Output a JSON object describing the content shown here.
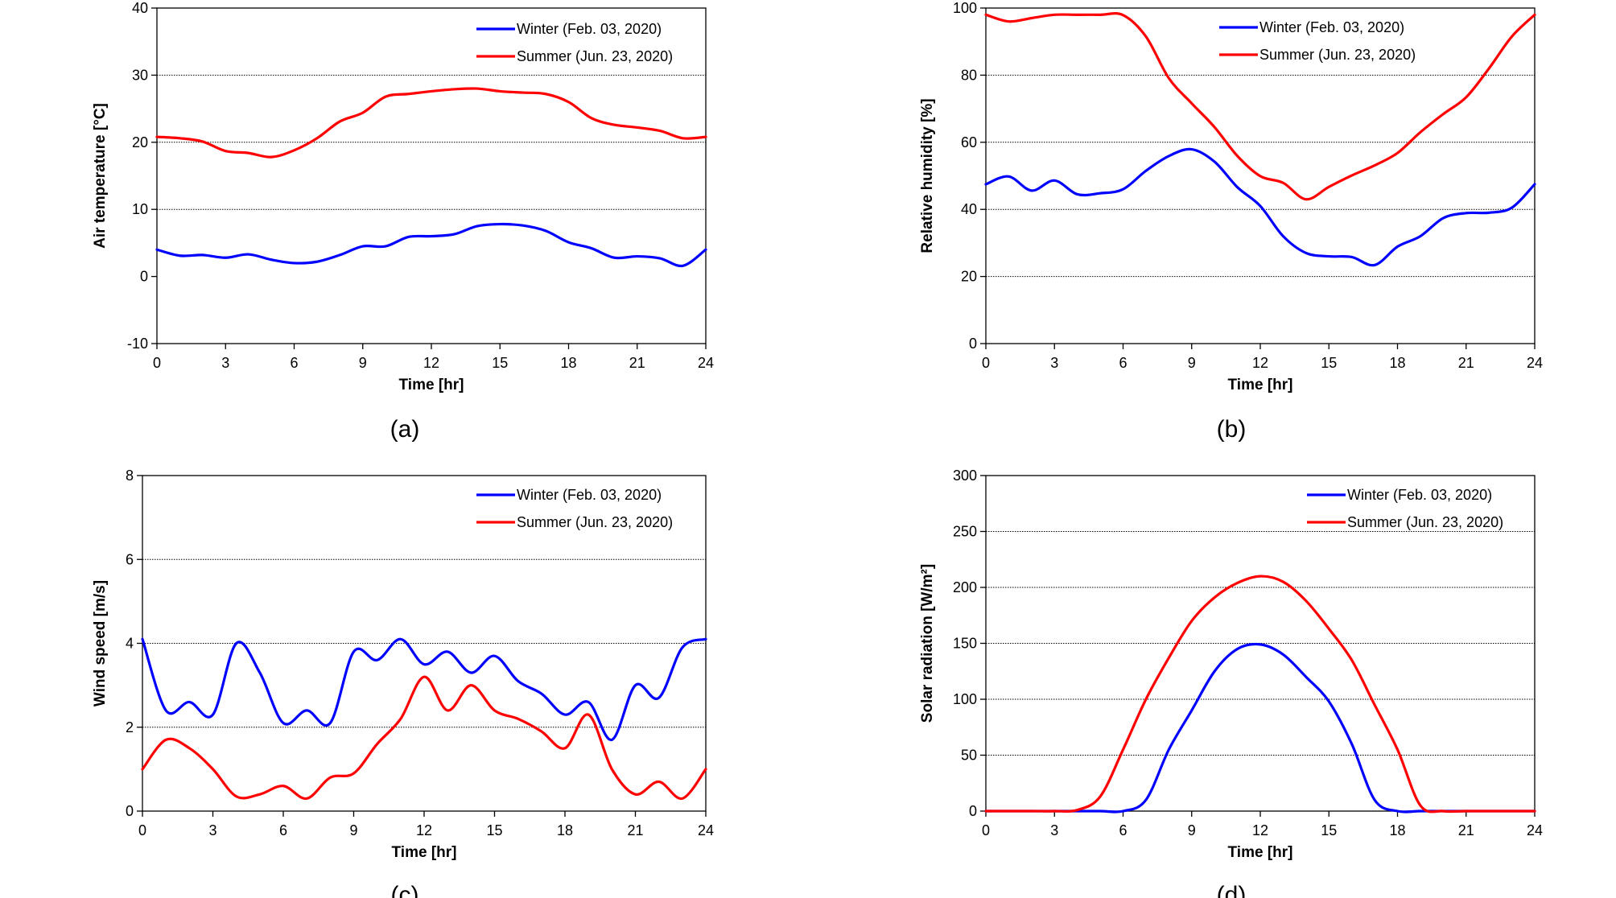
{
  "legend": {
    "winter": "Winter (Feb. 03, 2020)",
    "summer": "Summer (Jun. 23, 2020)"
  },
  "colors": {
    "winter": "#0000ff",
    "summer": "#ff0000",
    "grid": "#000000"
  },
  "chart_data": [
    {
      "type": "line",
      "panel_label": "(a)",
      "xlabel": "Time [hr]",
      "ylabel": "Air temperature [°C]",
      "xlim": [
        0,
        24
      ],
      "ylim": [
        -10,
        40
      ],
      "xticks": [
        0,
        3,
        6,
        9,
        12,
        15,
        18,
        21,
        24
      ],
      "yticks": [
        -10,
        0,
        10,
        20,
        30,
        40
      ],
      "gridlines_y": [
        10,
        20,
        30
      ],
      "legend_position": "top-right",
      "series": [
        {
          "name": "Winter (Feb. 03, 2020)",
          "color": "#0000ff",
          "x": [
            0,
            1,
            2,
            3,
            4,
            5,
            6,
            7,
            8,
            9,
            10,
            11,
            12,
            13,
            14,
            15,
            16,
            17,
            18,
            19,
            20,
            21,
            22,
            23,
            24
          ],
          "y": [
            4.0,
            3.1,
            3.2,
            2.8,
            3.3,
            2.5,
            2.0,
            2.2,
            3.2,
            4.5,
            4.5,
            5.9,
            6.0,
            6.3,
            7.5,
            7.8,
            7.6,
            6.8,
            5.1,
            4.2,
            2.8,
            3.0,
            2.7,
            1.6,
            4.0
          ]
        },
        {
          "name": "Summer (Jun. 23, 2020)",
          "color": "#ff0000",
          "x": [
            0,
            1,
            2,
            3,
            4,
            5,
            6,
            7,
            8,
            9,
            10,
            11,
            12,
            13,
            14,
            15,
            16,
            17,
            18,
            19,
            20,
            21,
            22,
            23,
            24
          ],
          "y": [
            20.8,
            20.6,
            20.1,
            18.7,
            18.4,
            17.8,
            18.8,
            20.6,
            23.1,
            24.4,
            26.8,
            27.2,
            27.6,
            27.9,
            28.0,
            27.6,
            27.4,
            27.2,
            26.0,
            23.6,
            22.6,
            22.2,
            21.7,
            20.6,
            20.8
          ]
        }
      ]
    },
    {
      "type": "line",
      "panel_label": "(b)",
      "xlabel": "Time [hr]",
      "ylabel": "Relative humidity [%]",
      "xlim": [
        0,
        24
      ],
      "ylim": [
        0,
        100
      ],
      "xticks": [
        0,
        3,
        6,
        9,
        12,
        15,
        18,
        21,
        24
      ],
      "yticks": [
        0,
        20,
        40,
        60,
        80,
        100
      ],
      "gridlines_y": [
        20,
        40,
        60,
        80
      ],
      "legend_position": "top-right",
      "series": [
        {
          "name": "Winter (Feb. 03, 2020)",
          "color": "#0000ff",
          "x": [
            0,
            1,
            2,
            3,
            4,
            5,
            6,
            7,
            8,
            9,
            10,
            11,
            12,
            13,
            14,
            15,
            16,
            17,
            18,
            19,
            20,
            21,
            22,
            23,
            24
          ],
          "y": [
            47.5,
            49.8,
            45.6,
            48.6,
            44.5,
            44.8,
            46.0,
            51.5,
            55.9,
            57.9,
            54.2,
            46.6,
            41.0,
            32.0,
            27.0,
            26.0,
            25.8,
            23.4,
            28.9,
            32.0,
            37.4,
            38.9,
            39.0,
            40.5,
            47.5
          ]
        },
        {
          "name": "Summer (Jun. 23, 2020)",
          "color": "#ff0000",
          "x": [
            0,
            1,
            2,
            3,
            4,
            5,
            6,
            7,
            8,
            9,
            10,
            11,
            12,
            13,
            14,
            15,
            16,
            17,
            18,
            19,
            20,
            21,
            22,
            23,
            24
          ],
          "y": [
            98.0,
            96.0,
            97.0,
            98.0,
            98.0,
            98.0,
            97.9,
            91.5,
            79.1,
            71.6,
            64.5,
            55.9,
            49.9,
            47.9,
            43.0,
            46.7,
            50.1,
            53.1,
            56.8,
            63.0,
            68.4,
            73.4,
            82.0,
            91.5,
            98.0
          ]
        }
      ]
    },
    {
      "type": "line",
      "panel_label": "(c)",
      "xlabel": "Time [hr]",
      "ylabel": "Wind speed [m/s]",
      "xlim": [
        0,
        24
      ],
      "ylim": [
        0,
        8
      ],
      "xticks": [
        0,
        3,
        6,
        9,
        12,
        15,
        18,
        21,
        24
      ],
      "yticks": [
        0,
        2,
        4,
        6,
        8
      ],
      "gridlines_y": [
        2,
        4,
        6
      ],
      "legend_position": "top-right",
      "series": [
        {
          "name": "Winter (Feb. 03, 2020)",
          "color": "#0000ff",
          "x": [
            0,
            1,
            2,
            3,
            4,
            5,
            6,
            7,
            8,
            9,
            10,
            11,
            12,
            13,
            14,
            15,
            16,
            17,
            18,
            19,
            20,
            21,
            22,
            23,
            24
          ],
          "y": [
            4.1,
            2.4,
            2.6,
            2.3,
            4.0,
            3.3,
            2.1,
            2.4,
            2.1,
            3.8,
            3.6,
            4.1,
            3.5,
            3.8,
            3.3,
            3.7,
            3.1,
            2.8,
            2.3,
            2.6,
            1.7,
            3.0,
            2.7,
            3.9,
            4.1
          ]
        },
        {
          "name": "Summer (Jun. 23, 2020)",
          "color": "#ff0000",
          "x": [
            0,
            1,
            2,
            3,
            4,
            5,
            6,
            7,
            8,
            9,
            10,
            11,
            12,
            13,
            14,
            15,
            16,
            17,
            18,
            19,
            20,
            21,
            22,
            23,
            24
          ],
          "y": [
            1.0,
            1.7,
            1.5,
            1.0,
            0.35,
            0.4,
            0.6,
            0.3,
            0.8,
            0.9,
            1.6,
            2.2,
            3.2,
            2.4,
            3.0,
            2.4,
            2.2,
            1.9,
            1.5,
            2.3,
            1.0,
            0.4,
            0.7,
            0.3,
            1.0
          ]
        }
      ]
    },
    {
      "type": "line",
      "panel_label": "(d)",
      "xlabel": "Time [hr]",
      "ylabel": "Solar radiation [W/m²]",
      "xlim": [
        0,
        24
      ],
      "ylim": [
        0,
        300
      ],
      "xticks": [
        0,
        3,
        6,
        9,
        12,
        15,
        18,
        21,
        24
      ],
      "yticks": [
        0,
        50,
        100,
        150,
        200,
        250,
        300
      ],
      "gridlines_y": [
        50,
        100,
        150,
        200,
        250
      ],
      "legend_position": "top-right",
      "series": [
        {
          "name": "Winter (Feb. 03, 2020)",
          "color": "#0000ff",
          "x": [
            0,
            1,
            2,
            3,
            4,
            5,
            6,
            7,
            8,
            9,
            10,
            11,
            12,
            13,
            14,
            15,
            16,
            17,
            18,
            19,
            20,
            21,
            22,
            23,
            24
          ],
          "y": [
            0,
            0,
            0,
            0,
            0,
            0,
            0,
            10,
            55,
            90,
            125,
            145,
            149,
            140,
            120,
            98,
            60,
            10,
            0,
            0,
            0,
            0,
            0,
            0,
            0
          ]
        },
        {
          "name": "Summer (Jun. 23, 2020)",
          "color": "#ff0000",
          "x": [
            0,
            1,
            2,
            3,
            4,
            5,
            6,
            7,
            8,
            9,
            10,
            11,
            12,
            13,
            14,
            15,
            16,
            17,
            18,
            19,
            20,
            21,
            22,
            23,
            24
          ],
          "y": [
            0,
            0,
            0,
            0,
            1,
            13,
            55,
            100,
            137,
            170,
            191,
            204,
            210,
            205,
            188,
            163,
            135,
            95,
            55,
            5,
            0,
            0,
            0,
            0,
            0
          ]
        }
      ]
    }
  ]
}
